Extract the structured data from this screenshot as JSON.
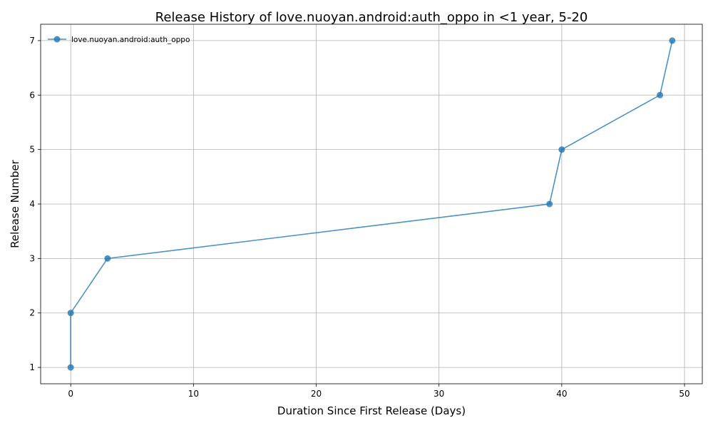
{
  "chart_data": {
    "type": "line",
    "title": "Release History of love.nuoyan.android:auth_oppo in <1 year, 5-20",
    "xlabel": "Duration Since First Release (Days)",
    "ylabel": "Release Number",
    "xlim": [
      -2.45,
      51.45
    ],
    "ylim": [
      0.7,
      7.3
    ],
    "xticks": [
      0,
      10,
      20,
      30,
      40,
      50
    ],
    "yticks": [
      1,
      2,
      3,
      4,
      5,
      6,
      7
    ],
    "grid": true,
    "legend_position": "top-left",
    "series": [
      {
        "name": "love.nuoyan.android:auth_oppo",
        "color": "#1f77b4",
        "x": [
          0,
          0,
          3,
          39,
          40,
          48,
          49
        ],
        "y": [
          1,
          2,
          3,
          4,
          5,
          6,
          7
        ]
      }
    ]
  }
}
